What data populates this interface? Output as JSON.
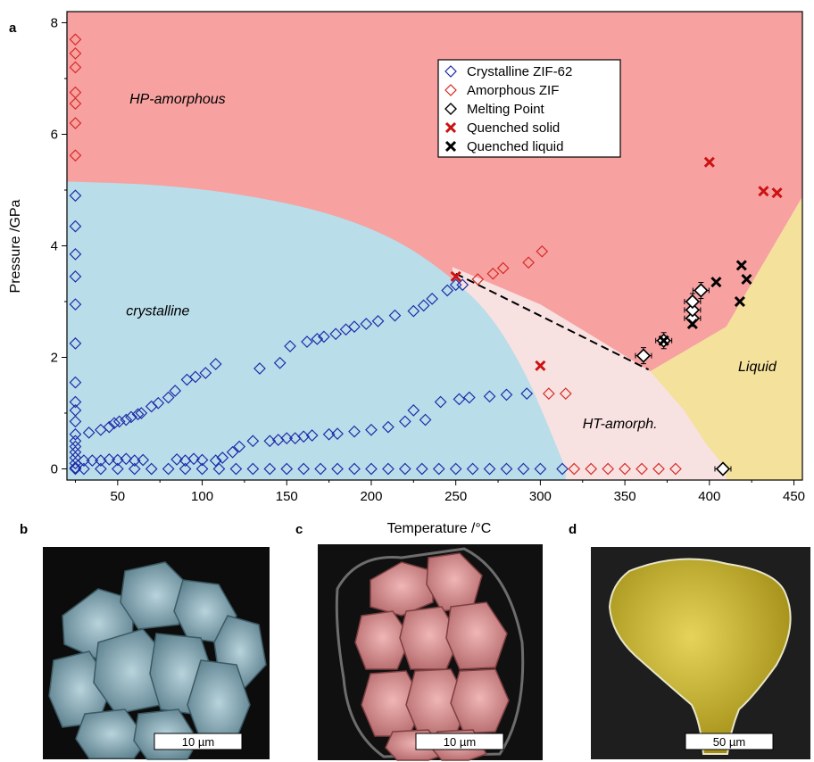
{
  "panels": {
    "a": "a",
    "b": "b",
    "c": "c",
    "d": "d"
  },
  "chart_data": {
    "type": "scatter",
    "xlabel": "Temperature /°C",
    "ylabel": "Pressure /GPa",
    "xlim": [
      20,
      455
    ],
    "ylim": [
      -0.2,
      8.2
    ],
    "xticks": [
      50,
      100,
      150,
      200,
      250,
      300,
      350,
      400,
      450
    ],
    "yticks": [
      0,
      2,
      4,
      6,
      8
    ],
    "grid": false,
    "legend_position": "top-right",
    "colors": {
      "hp_amorphous": "#f7a1a1",
      "crystalline": "#b9dde9",
      "ht_amorph": "#f8e1e1",
      "liquid": "#f4e19c",
      "crystalline_marker": "#1c2aa8",
      "amorphous_marker": "#d42a24",
      "quenched_solid": "#cc1111",
      "black": "#000000"
    },
    "regions": [
      {
        "name": "HP-amorphous",
        "label": "HP-amorphous",
        "label_at": [
          57,
          6.55
        ]
      },
      {
        "name": "crystalline",
        "label": "crystalline",
        "label_at": [
          55,
          2.75
        ]
      },
      {
        "name": "HT-amorph",
        "label": "HT-amorph.",
        "label_at": [
          325,
          0.73
        ]
      },
      {
        "name": "Liquid",
        "label": "Liquid",
        "label_at": [
          417,
          1.75
        ]
      }
    ],
    "boundaries": {
      "crystalline": [
        [
          24,
          5.15
        ],
        [
          75,
          5.1
        ],
        [
          125,
          4.92
        ],
        [
          175,
          4.6
        ],
        [
          215,
          4.12
        ],
        [
          245,
          3.5
        ],
        [
          270,
          2.8
        ],
        [
          290,
          1.8
        ],
        [
          303,
          0.9
        ],
        [
          315,
          0
        ]
      ],
      "hp_lower": [
        [
          248,
          3.62
        ],
        [
          300,
          2.95
        ],
        [
          330,
          2.4
        ],
        [
          365,
          1.75
        ],
        [
          410,
          2.55
        ],
        [
          455,
          4.88
        ]
      ],
      "ht_lower": [
        [
          365,
          1.75
        ],
        [
          385,
          1.05
        ],
        [
          398,
          0.45
        ],
        [
          410,
          0
        ]
      ]
    },
    "series": [
      {
        "name": "Crystalline ZIF-62",
        "marker": "diamond-open",
        "color": "#1c2aa8",
        "points": [
          [
            25,
            4.9
          ],
          [
            25,
            4.35
          ],
          [
            25,
            3.85
          ],
          [
            25,
            3.45
          ],
          [
            25,
            2.95
          ],
          [
            25,
            2.25
          ],
          [
            25,
            1.55
          ],
          [
            25,
            1.2
          ],
          [
            25,
            1.05
          ],
          [
            25,
            0.85
          ],
          [
            25,
            0.62
          ],
          [
            25,
            0.5
          ],
          [
            25,
            0.4
          ],
          [
            25,
            0.3
          ],
          [
            25,
            0.2
          ],
          [
            25,
            0.1
          ],
          [
            25,
            0.02
          ],
          [
            33,
            0.65
          ],
          [
            40,
            0.7
          ],
          [
            45,
            0.75
          ],
          [
            48,
            0.82
          ],
          [
            51,
            0.85
          ],
          [
            55,
            0.88
          ],
          [
            58,
            0.93
          ],
          [
            62,
            0.98
          ],
          [
            64,
            1.0
          ],
          [
            70,
            1.12
          ],
          [
            74,
            1.18
          ],
          [
            80,
            1.28
          ],
          [
            84,
            1.4
          ],
          [
            91,
            1.6
          ],
          [
            96,
            1.65
          ],
          [
            102,
            1.72
          ],
          [
            108,
            1.88
          ],
          [
            134,
            1.8
          ],
          [
            146,
            1.9
          ],
          [
            152,
            2.2
          ],
          [
            162,
            2.28
          ],
          [
            168,
            2.33
          ],
          [
            172,
            2.37
          ],
          [
            179,
            2.42
          ],
          [
            185,
            2.5
          ],
          [
            190,
            2.55
          ],
          [
            197,
            2.6
          ],
          [
            204,
            2.65
          ],
          [
            214,
            2.75
          ],
          [
            225,
            2.83
          ],
          [
            231,
            2.93
          ],
          [
            236,
            3.05
          ],
          [
            245,
            3.2
          ],
          [
            250,
            3.3
          ],
          [
            254,
            3.3
          ],
          [
            30,
            0.15
          ],
          [
            35,
            0.15
          ],
          [
            40,
            0.15
          ],
          [
            45,
            0.17
          ],
          [
            50,
            0.16
          ],
          [
            55,
            0.18
          ],
          [
            60,
            0.15
          ],
          [
            65,
            0.16
          ],
          [
            85,
            0.17
          ],
          [
            90,
            0.15
          ],
          [
            95,
            0.18
          ],
          [
            100,
            0.16
          ],
          [
            108,
            0.15
          ],
          [
            112,
            0.2
          ],
          [
            118,
            0.3
          ],
          [
            122,
            0.4
          ],
          [
            130,
            0.5
          ],
          [
            140,
            0.5
          ],
          [
            145,
            0.52
          ],
          [
            150,
            0.55
          ],
          [
            155,
            0.55
          ],
          [
            160,
            0.58
          ],
          [
            165,
            0.6
          ],
          [
            175,
            0.62
          ],
          [
            180,
            0.63
          ],
          [
            190,
            0.67
          ],
          [
            200,
            0.7
          ],
          [
            210,
            0.75
          ],
          [
            220,
            0.85
          ],
          [
            225,
            1.05
          ],
          [
            232,
            0.88
          ],
          [
            241,
            1.2
          ],
          [
            252,
            1.25
          ],
          [
            258,
            1.28
          ],
          [
            270,
            1.3
          ],
          [
            280,
            1.33
          ],
          [
            292,
            1.35
          ],
          [
            25,
            0
          ],
          [
            30,
            0
          ],
          [
            40,
            0
          ],
          [
            50,
            0
          ],
          [
            60,
            0
          ],
          [
            70,
            0
          ],
          [
            80,
            0
          ],
          [
            90,
            0
          ],
          [
            100,
            0
          ],
          [
            110,
            0
          ],
          [
            120,
            0
          ],
          [
            130,
            0
          ],
          [
            140,
            0
          ],
          [
            150,
            0
          ],
          [
            160,
            0
          ],
          [
            170,
            0
          ],
          [
            180,
            0
          ],
          [
            190,
            0
          ],
          [
            200,
            0
          ],
          [
            210,
            0
          ],
          [
            220,
            0
          ],
          [
            230,
            0
          ],
          [
            240,
            0
          ],
          [
            250,
            0
          ],
          [
            260,
            0
          ],
          [
            270,
            0
          ],
          [
            280,
            0
          ],
          [
            290,
            0
          ],
          [
            300,
            0
          ],
          [
            313,
            0
          ]
        ]
      },
      {
        "name": "Amorphous ZIF",
        "marker": "diamond-open",
        "color": "#d42a24",
        "points": [
          [
            25,
            7.7
          ],
          [
            25,
            7.45
          ],
          [
            25,
            7.2
          ],
          [
            25,
            6.75
          ],
          [
            25,
            6.55
          ],
          [
            25,
            6.2
          ],
          [
            25,
            5.62
          ],
          [
            263,
            3.4
          ],
          [
            272,
            3.5
          ],
          [
            278,
            3.6
          ],
          [
            293,
            3.7
          ],
          [
            301,
            3.9
          ],
          [
            305,
            1.35
          ],
          [
            315,
            1.35
          ],
          [
            320,
            0
          ],
          [
            330,
            0
          ],
          [
            340,
            0
          ],
          [
            350,
            0
          ],
          [
            360,
            0
          ],
          [
            370,
            0
          ],
          [
            380,
            0
          ]
        ]
      },
      {
        "name": "Melting Point",
        "marker": "diamond-filled-white",
        "color": "#000000",
        "points": [
          [
            361,
            2.03
          ],
          [
            373,
            2.3
          ],
          [
            390,
            2.7
          ],
          [
            390,
            2.85
          ],
          [
            390,
            3.0
          ],
          [
            395,
            3.2
          ],
          [
            408,
            0
          ]
        ]
      },
      {
        "name": "Quenched solid",
        "marker": "x",
        "color": "#cc1111",
        "points": [
          [
            400,
            5.5
          ],
          [
            432,
            4.98
          ],
          [
            440,
            4.95
          ],
          [
            250,
            3.45
          ],
          [
            300,
            1.85
          ]
        ]
      },
      {
        "name": "Quenched liquid",
        "marker": "x",
        "color": "#000000",
        "points": [
          [
            373,
            2.3
          ],
          [
            390,
            2.6
          ],
          [
            404,
            3.35
          ],
          [
            418,
            3.0
          ],
          [
            419,
            3.65
          ],
          [
            422,
            3.4
          ]
        ]
      }
    ],
    "error_bars_on": "Melting Point"
  },
  "images": {
    "b": {
      "label": "b",
      "scalebar": "10 µm",
      "tint": "#7fa6b3"
    },
    "c": {
      "label": "c",
      "scalebar": "10 µm",
      "tint": "#dd8f90"
    },
    "d": {
      "label": "d",
      "scalebar": "50 µm",
      "tint": "#c8b22a"
    }
  }
}
